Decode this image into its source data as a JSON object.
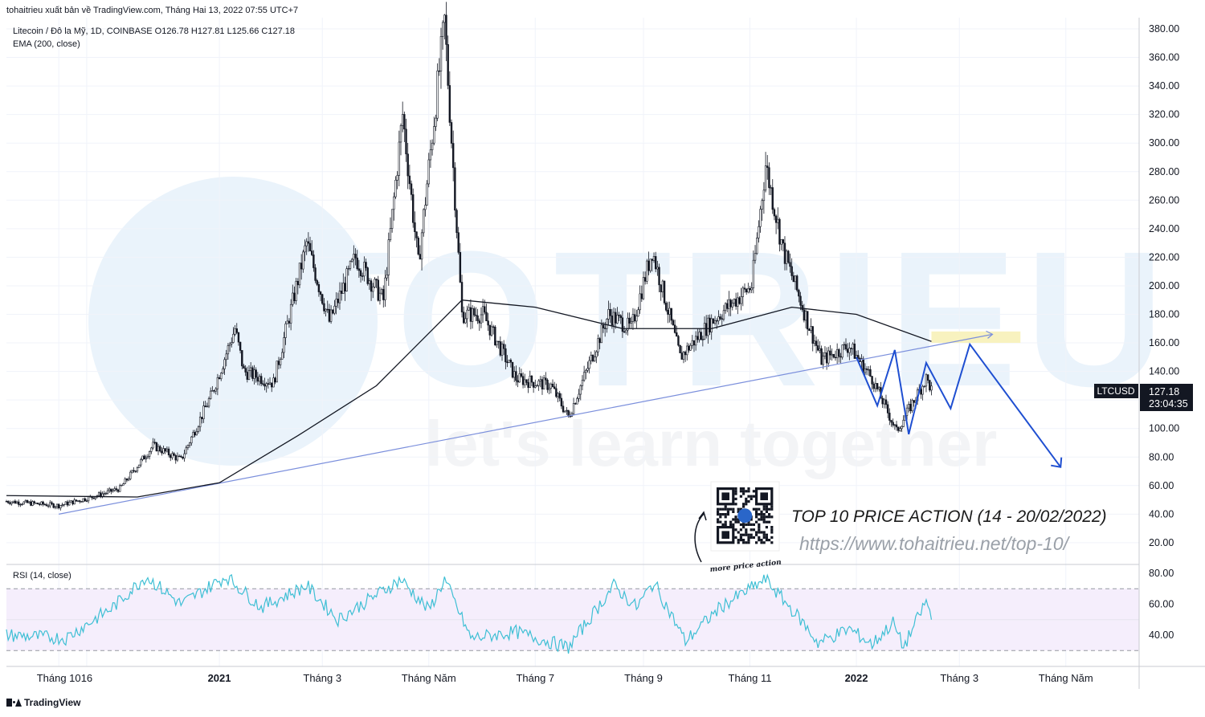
{
  "header": {
    "publisher": "tohaitrieu xuất bản về TradingView.com, Tháng Hai 13, 2022 07:55 UTC+7"
  },
  "legend": {
    "symbol_line": "Litecoin / Đô la Mỹ, 1D, COINBASE  O126.78  H127.81  L125.66  C127.18",
    "ema_line": "EMA (200, close)",
    "rsi_line": "RSI (14, close)"
  },
  "price_tag": {
    "symbol": "LTCUSD",
    "price": "127.18",
    "countdown": "23:04:35"
  },
  "watermark": {
    "brand": "TOTRIEU",
    "slogan": "let's learn together"
  },
  "promo": {
    "title": "TOP 10 PRICE ACTION (14 - 20/02/2022)",
    "url": "https://www.tohaitrieu.net/top-10/",
    "qr_caption": "more price action"
  },
  "footer": {
    "brand": "TradingView"
  },
  "colors": {
    "up": "#131722",
    "ema": "#131722",
    "trend": "#7b8fdc",
    "projection": "#1f4fd1",
    "rsi": "#3ebfd4",
    "rsi_band": "#f5eefc",
    "target_box": "#f8f2bf"
  },
  "chart_data": [
    {
      "type": "candlestick",
      "title": "Litecoin / Đô la Mỹ, 1D, COINBASE",
      "x_tick_labels": [
        "Tháng 10",
        "16",
        "2021",
        "Tháng 3",
        "Tháng Năm",
        "Tháng 7",
        "Tháng 9",
        "Tháng 11",
        "2022",
        "Tháng 3",
        "Tháng Năm"
      ],
      "y_tick_labels": [
        "380.00",
        "360.00",
        "340.00",
        "320.00",
        "300.00",
        "280.00",
        "260.00",
        "240.00",
        "220.00",
        "200.00",
        "180.00",
        "160.00",
        "140.00",
        "120.00",
        "100.00",
        "80.00",
        "60.00",
        "40.00",
        "20.00"
      ],
      "ylim": [
        5,
        388
      ],
      "close_path": [
        {
          "x": "2020-09-01",
          "y": 49
        },
        {
          "x": "2020-10-01",
          "y": 46
        },
        {
          "x": "2020-10-20",
          "y": 52
        },
        {
          "x": "2020-11-05",
          "y": 58
        },
        {
          "x": "2020-11-24",
          "y": 88
        },
        {
          "x": "2020-12-10",
          "y": 78
        },
        {
          "x": "2020-12-28",
          "y": 125
        },
        {
          "x": "2021-01-10",
          "y": 170
        },
        {
          "x": "2021-01-15",
          "y": 140
        },
        {
          "x": "2021-02-01",
          "y": 132
        },
        {
          "x": "2021-02-20",
          "y": 230
        },
        {
          "x": "2021-03-05",
          "y": 175
        },
        {
          "x": "2021-03-20",
          "y": 220
        },
        {
          "x": "2021-04-05",
          "y": 190
        },
        {
          "x": "2021-04-16",
          "y": 320
        },
        {
          "x": "2021-04-25",
          "y": 215
        },
        {
          "x": "2021-05-10",
          "y": 385
        },
        {
          "x": "2021-05-20",
          "y": 180
        },
        {
          "x": "2021-06-01",
          "y": 180
        },
        {
          "x": "2021-06-20",
          "y": 135
        },
        {
          "x": "2021-07-10",
          "y": 130
        },
        {
          "x": "2021-07-20",
          "y": 108
        },
        {
          "x": "2021-08-12",
          "y": 180
        },
        {
          "x": "2021-08-25",
          "y": 170
        },
        {
          "x": "2021-09-06",
          "y": 225
        },
        {
          "x": "2021-09-22",
          "y": 150
        },
        {
          "x": "2021-10-10",
          "y": 175
        },
        {
          "x": "2021-11-02",
          "y": 200
        },
        {
          "x": "2021-11-10",
          "y": 285
        },
        {
          "x": "2021-11-20",
          "y": 225
        },
        {
          "x": "2021-12-04",
          "y": 175
        },
        {
          "x": "2021-12-12",
          "y": 148
        },
        {
          "x": "2021-12-28",
          "y": 158
        },
        {
          "x": "2022-01-10",
          "y": 135
        },
        {
          "x": "2022-01-24",
          "y": 98
        },
        {
          "x": "2022-02-10",
          "y": 135
        },
        {
          "x": "2022-02-13",
          "y": 127.18
        }
      ],
      "ema_200": [
        {
          "x": "2020-09-01",
          "y": 53
        },
        {
          "x": "2020-11-15",
          "y": 52
        },
        {
          "x": "2021-01-01",
          "y": 62
        },
        {
          "x": "2021-02-15",
          "y": 95
        },
        {
          "x": "2021-04-01",
          "y": 130
        },
        {
          "x": "2021-05-20",
          "y": 190
        },
        {
          "x": "2021-07-01",
          "y": 185
        },
        {
          "x": "2021-08-20",
          "y": 170
        },
        {
          "x": "2021-10-10",
          "y": 170
        },
        {
          "x": "2021-11-25",
          "y": 185
        },
        {
          "x": "2022-01-01",
          "y": 180
        },
        {
          "x": "2022-02-13",
          "y": 161
        }
      ],
      "trend_line": [
        {
          "x": "2020-10-01",
          "y": 40
        },
        {
          "x": "2022-03-20",
          "y": 166
        }
      ],
      "target_zone": {
        "from": "2022-02-13",
        "to": "2022-04-05",
        "low": 160,
        "high": 168
      },
      "projection_path": [
        {
          "x": "2022-01-01",
          "y": 150
        },
        {
          "x": "2022-01-13",
          "y": 116
        },
        {
          "x": "2022-01-23",
          "y": 155
        },
        {
          "x": "2022-01-31",
          "y": 96
        },
        {
          "x": "2022-02-10",
          "y": 146
        },
        {
          "x": "2022-02-24",
          "y": 114
        },
        {
          "x": "2022-03-07",
          "y": 159
        },
        {
          "x": "2022-04-28",
          "y": 73
        }
      ],
      "last_price": 127.18
    },
    {
      "type": "line",
      "title": "RSI (14, close)",
      "y_tick_labels": [
        "80.00",
        "60.00",
        "40.00"
      ],
      "ylim": [
        25,
        85
      ],
      "band": [
        30,
        70
      ],
      "series": [
        {
          "values": [
            {
              "x": "2020-09-01",
              "y": 40
            },
            {
              "x": "2020-10-05",
              "y": 38
            },
            {
              "x": "2020-11-01",
              "y": 58
            },
            {
              "x": "2020-11-20",
              "y": 78
            },
            {
              "x": "2020-12-10",
              "y": 60
            },
            {
              "x": "2021-01-05",
              "y": 78
            },
            {
              "x": "2021-01-25",
              "y": 58
            },
            {
              "x": "2021-02-20",
              "y": 72
            },
            {
              "x": "2021-03-10",
              "y": 50
            },
            {
              "x": "2021-04-01",
              "y": 66
            },
            {
              "x": "2021-04-15",
              "y": 76
            },
            {
              "x": "2021-05-01",
              "y": 56
            },
            {
              "x": "2021-05-10",
              "y": 76
            },
            {
              "x": "2021-05-25",
              "y": 38
            },
            {
              "x": "2021-06-20",
              "y": 42
            },
            {
              "x": "2021-07-20",
              "y": 32
            },
            {
              "x": "2021-08-15",
              "y": 72
            },
            {
              "x": "2021-08-28",
              "y": 58
            },
            {
              "x": "2021-09-07",
              "y": 74
            },
            {
              "x": "2021-09-25",
              "y": 36
            },
            {
              "x": "2021-10-15",
              "y": 58
            },
            {
              "x": "2021-11-10",
              "y": 76
            },
            {
              "x": "2021-11-30",
              "y": 50
            },
            {
              "x": "2021-12-10",
              "y": 35
            },
            {
              "x": "2021-12-28",
              "y": 44
            },
            {
              "x": "2022-01-10",
              "y": 34
            },
            {
              "x": "2022-01-22",
              "y": 48
            },
            {
              "x": "2022-01-28",
              "y": 32
            },
            {
              "x": "2022-02-10",
              "y": 62
            },
            {
              "x": "2022-02-13",
              "y": 51
            }
          ]
        }
      ]
    }
  ]
}
